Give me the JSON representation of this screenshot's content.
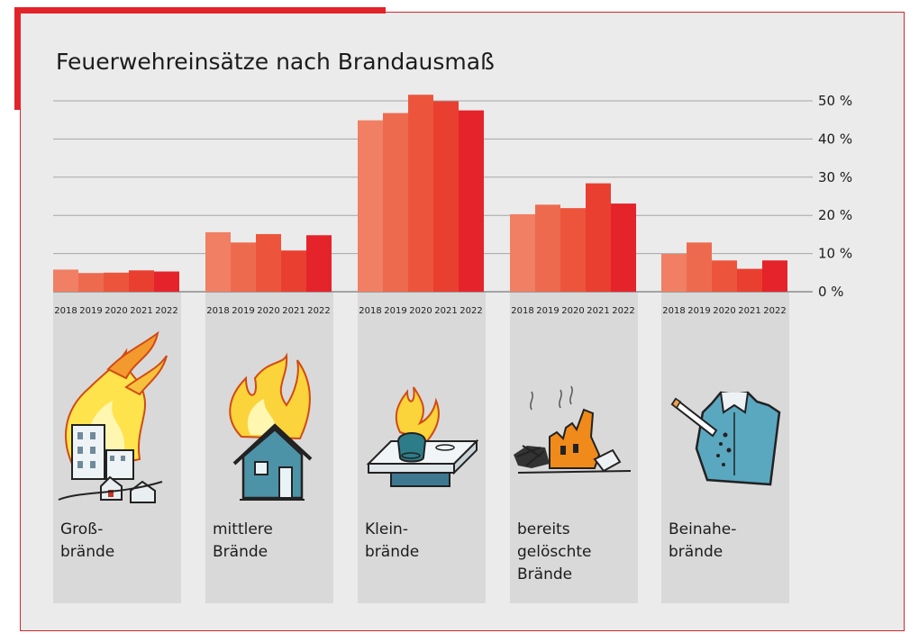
{
  "chart_data": {
    "type": "bar",
    "title": "Feuerwehreinsätze nach Brandausmaß",
    "xlabel": "",
    "ylabel": "",
    "ylim": [
      0,
      50
    ],
    "y_ticks": [
      "0 %",
      "10 %",
      "20 %",
      "30 %",
      "40 %",
      "50 %"
    ],
    "years": [
      "2018",
      "2019",
      "2020",
      "2021",
      "2022"
    ],
    "year_colors": [
      "#f07f63",
      "#ee6a4f",
      "#ec553c",
      "#e93f30",
      "#e5232a"
    ],
    "grid": true,
    "y_axis_position": "right",
    "categories": [
      {
        "label_lines": [
          "Groß-",
          "brände"
        ],
        "icon": "large-fire-buildings-icon",
        "values": [
          5.8,
          4.9,
          5.0,
          5.6,
          5.3
        ]
      },
      {
        "label_lines": [
          "mittlere",
          "Brände"
        ],
        "icon": "burning-house-icon",
        "values": [
          15.6,
          12.9,
          15.1,
          10.8,
          14.8
        ]
      },
      {
        "label_lines": [
          "Klein-",
          "brände"
        ],
        "icon": "stove-pot-fire-icon",
        "values": [
          44.9,
          46.8,
          51.6,
          49.9,
          47.5
        ]
      },
      {
        "label_lines": [
          "bereits",
          "gelöschte",
          "Brände"
        ],
        "icon": "smoldering-ruins-icon",
        "values": [
          20.3,
          22.8,
          21.9,
          28.4,
          23.1
        ]
      },
      {
        "label_lines": [
          "Beinahe-",
          "brände"
        ],
        "icon": "cigarette-burned-shirt-icon",
        "values": [
          9.9,
          12.9,
          8.2,
          6.0,
          8.2
        ]
      }
    ]
  }
}
